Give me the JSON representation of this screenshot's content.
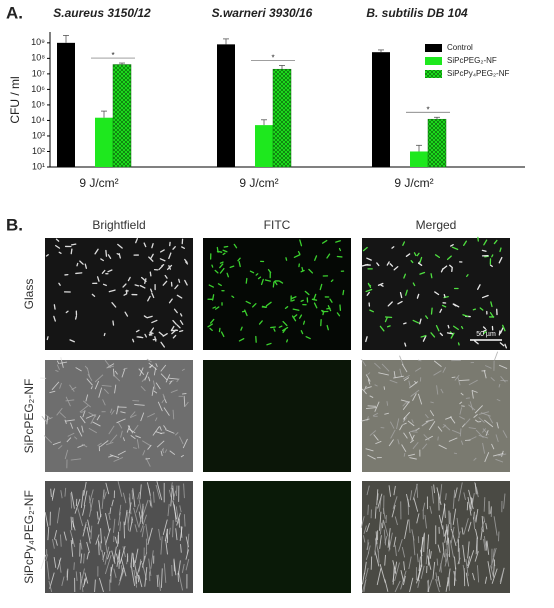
{
  "chart_data": {
    "type": "bar",
    "log_y": true,
    "categories": [
      "S.aureus 3150/12",
      "S.warneri 3930/16",
      "B. subtilis DB 104"
    ],
    "x_labels": [
      "9 J/cm²",
      "9 J/cm²",
      "9 J/cm²"
    ],
    "y_label": "CFU / ml",
    "series": [
      {
        "name": "Control",
        "color": "#000000",
        "hatch": false,
        "values": [
          1000000000,
          800000000,
          250000000
        ],
        "errors": [
          2000000000,
          1000000000,
          100000000
        ]
      },
      {
        "name": "SiPcPEG₂-NF",
        "color": "#1ee81e",
        "hatch": false,
        "values": [
          15000,
          5000,
          100
        ],
        "errors": [
          25000,
          6000,
          150
        ]
      },
      {
        "name": "SiPcPy₄PEG₂-NF",
        "color": "#1ee81e",
        "hatch": true,
        "values": [
          40000000,
          20000000,
          12000
        ],
        "errors": [
          10000000,
          15000000,
          4000
        ]
      }
    ],
    "annotations": [
      "*",
      "*",
      "*"
    ],
    "ylim": [
      10,
      5000000000
    ],
    "yticks": [
      {
        "value": 10,
        "label": "10¹"
      },
      {
        "value": 100,
        "label": "10²"
      },
      {
        "value": 1000,
        "label": "10³"
      },
      {
        "value": 10000,
        "label": "10⁴"
      },
      {
        "value": 100000,
        "label": "10⁵"
      },
      {
        "value": 1000000,
        "label": "10⁶"
      },
      {
        "value": 10000000,
        "label": "10⁷"
      },
      {
        "value": 100000000,
        "label": "10⁸"
      },
      {
        "value": 1000000000,
        "label": "10⁹"
      }
    ],
    "legend": "top-right"
  },
  "figure": {
    "panel_a_label": "A.",
    "panel_b_label": "B.",
    "columns": [
      "Brightfield",
      "FITC",
      "Merged"
    ],
    "rows": [
      "Glass",
      "SiPcPEG₂-NF",
      "SiPcPy₄PEG₂-NF"
    ],
    "scale_bar": "50 µm"
  }
}
